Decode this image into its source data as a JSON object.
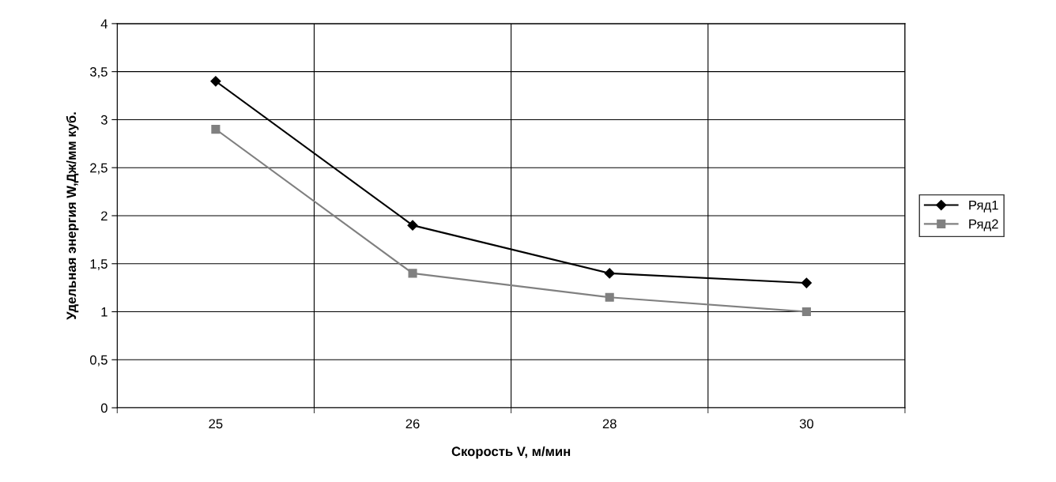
{
  "chart_data": {
    "type": "line",
    "xlabel": "Скорость V, м/мин",
    "ylabel": "Удельная энергия W,Дж/мм куб.",
    "categories": [
      "25",
      "26",
      "28",
      "30"
    ],
    "series": [
      {
        "name": "Ряд1",
        "color": "#000000",
        "marker": "diamond",
        "values": [
          3.4,
          1.9,
          1.4,
          1.3
        ]
      },
      {
        "name": "Ряд2",
        "color": "#808080",
        "marker": "square",
        "values": [
          2.9,
          1.4,
          1.15,
          1.0
        ]
      }
    ],
    "ylim": [
      0,
      4
    ],
    "yticks": [
      0,
      {
        "value": 0.5,
        "label": "0,5"
      },
      1,
      {
        "value": 1.5,
        "label": "1,5"
      },
      2,
      {
        "value": 2.5,
        "label": "2,5"
      },
      3,
      {
        "value": 3.5,
        "label": "3,5"
      },
      4
    ],
    "grid": true,
    "legend": "right",
    "line_style": "solid"
  }
}
